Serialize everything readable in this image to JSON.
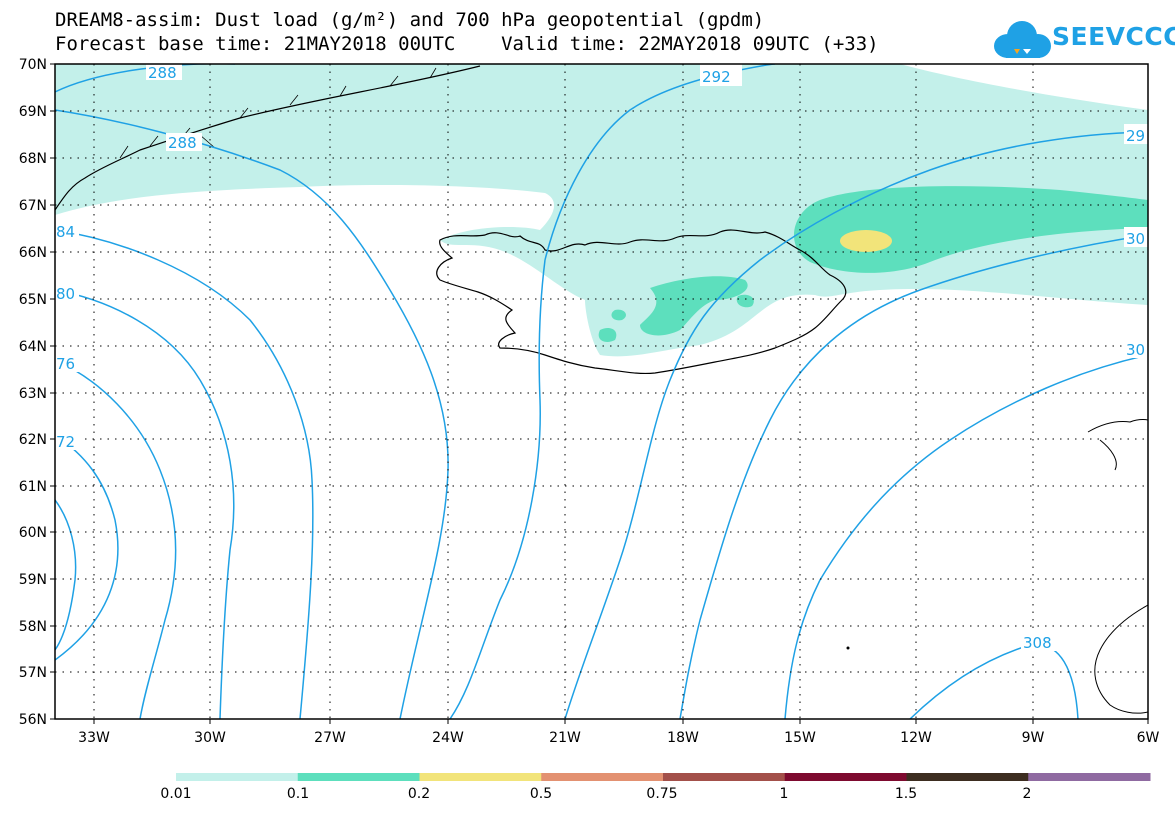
{
  "title": {
    "line1": "DREAM8-assim: Dust load (g/m²) and 700 hPa geopotential (gpdm)",
    "line2": "Forecast base time: 21MAY2018 00UTC    Valid time: 22MAY2018 09UTC (+33)"
  },
  "logo": {
    "text": "SEEVCCC",
    "icon": "cloud-icon",
    "color": "#1fa1e5"
  },
  "map": {
    "lat_labels": [
      "70N",
      "69N",
      "68N",
      "67N",
      "66N",
      "65N",
      "64N",
      "63N",
      "62N",
      "61N",
      "60N",
      "59N",
      "58N",
      "57N",
      "56N"
    ],
    "lon_labels": [
      "33W",
      "30W",
      "27W",
      "24W",
      "21W",
      "18W",
      "15W",
      "12W",
      "9W",
      "6W"
    ],
    "contour_color": "#1fa1e5",
    "contour_labels": [
      "288",
      "288",
      "292",
      "29",
      "30",
      "30",
      "308",
      "84",
      "80",
      "76",
      "72"
    ]
  },
  "colorbar": {
    "colors": [
      "#c3f0ea",
      "#5ddfbd",
      "#f2e47a",
      "#e39171",
      "#a3504a",
      "#7e0a2f",
      "#3d2d20",
      "#8f6aa1"
    ],
    "ticks": [
      "0.01",
      "0.1",
      "0.2",
      "0.5",
      "0.75",
      "1",
      "1.5",
      "2"
    ]
  }
}
